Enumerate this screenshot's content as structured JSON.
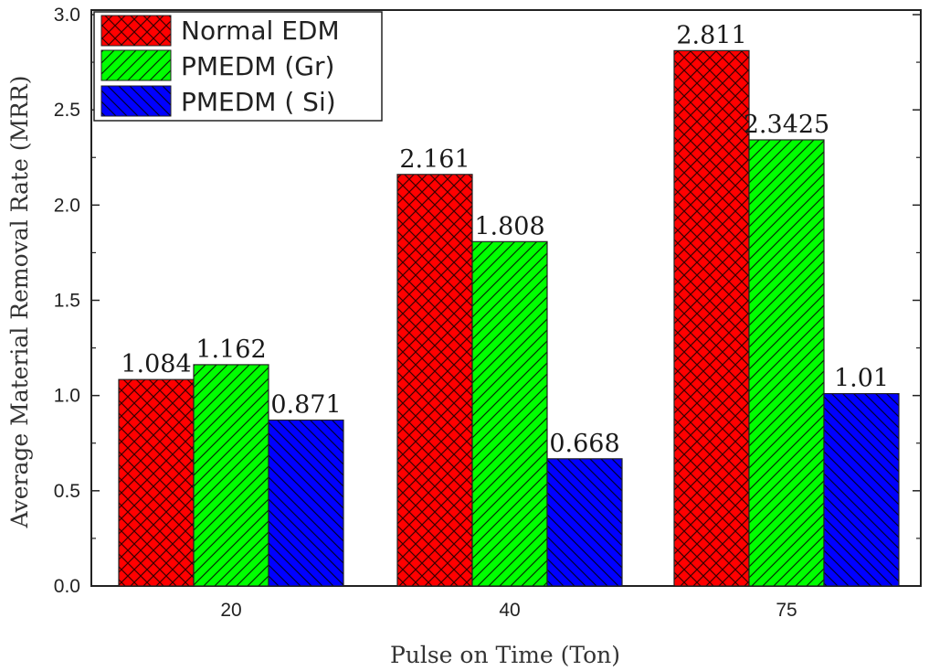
{
  "chart_data": {
    "type": "bar",
    "categories": [
      "20",
      "40",
      "75"
    ],
    "series": [
      {
        "name": "Normal EDM",
        "values": [
          1.084,
          2.161,
          2.811
        ],
        "labels": [
          "1.084",
          "2.161",
          "2.811"
        ],
        "color": "#ff0000",
        "pattern": "crosshatch"
      },
      {
        "name": "PMEDM (Gr)",
        "values": [
          1.162,
          1.808,
          2.3425
        ],
        "labels": [
          "1.162",
          "1.808",
          "2.3425"
        ],
        "color": "#00ff00",
        "pattern": "diagonal"
      },
      {
        "name": "PMEDM ( Si)",
        "values": [
          0.871,
          0.668,
          1.01
        ],
        "labels": [
          "0.871",
          "0.668",
          "1.01"
        ],
        "color": "#0000ff",
        "pattern": "backdiagonal"
      }
    ],
    "xlabel": "Pulse on Time (Ton)",
    "ylabel": "Average Material Removal Rate (MRR)",
    "ylim": [
      0,
      3.0
    ],
    "yticks": [
      "0.0",
      "0.5",
      "1.0",
      "1.5",
      "2.0",
      "2.5",
      "3.0"
    ],
    "legend_position": "top-left",
    "grid": false
  }
}
